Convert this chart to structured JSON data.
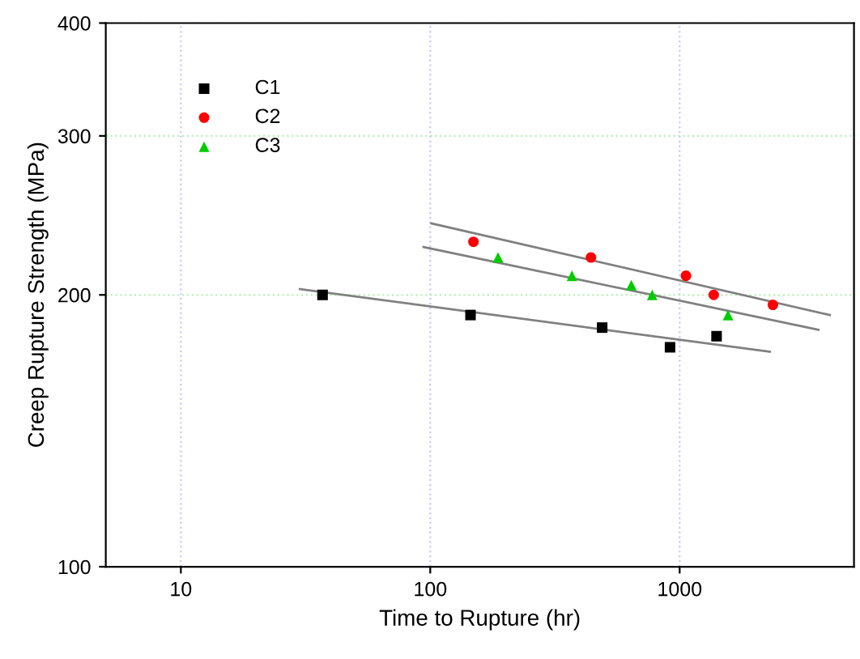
{
  "chart_data": {
    "type": "scatter",
    "xlabel": "Time to Rupture (hr)",
    "ylabel": "Creep Rupture Strength (MPa)",
    "log": "xy",
    "xlim": [
      5,
      5000
    ],
    "ylim": [
      100,
      400
    ],
    "xticks": [
      10,
      100,
      1000
    ],
    "yticks": [
      100,
      200,
      300,
      400
    ],
    "grid": true,
    "legend": "top left",
    "series": [
      {
        "name": "C1",
        "color": "#000000",
        "marker": "square",
        "x": [
          37,
          145,
          489,
          915,
          1406
        ],
        "values": [
          200,
          190,
          184,
          175,
          180
        ]
      },
      {
        "name": "C2",
        "color": "#ff0000",
        "marker": "circle",
        "x": [
          149,
          441,
          1060,
          1370,
          2365
        ],
        "values": [
          229,
          220,
          210,
          200,
          195
        ]
      },
      {
        "name": "C3",
        "color": "#00cc00",
        "marker": "triangle",
        "x": [
          187,
          370,
          640,
          776,
          1563
        ],
        "values": [
          220,
          210,
          205,
          200,
          190
        ]
      },
      {
        "type": "line",
        "color": "#808080",
        "marker": "none",
        "x": [
          30,
          2300
        ],
        "values": [
          203,
          173
        ]
      },
      {
        "type": "line",
        "color": "#808080",
        "marker": "none",
        "x": [
          101,
          4000
        ],
        "values": [
          240,
          190
        ]
      },
      {
        "type": "line",
        "color": "#808080",
        "marker": "none",
        "x": [
          94,
          3600
        ],
        "values": [
          226,
          183
        ]
      }
    ]
  }
}
